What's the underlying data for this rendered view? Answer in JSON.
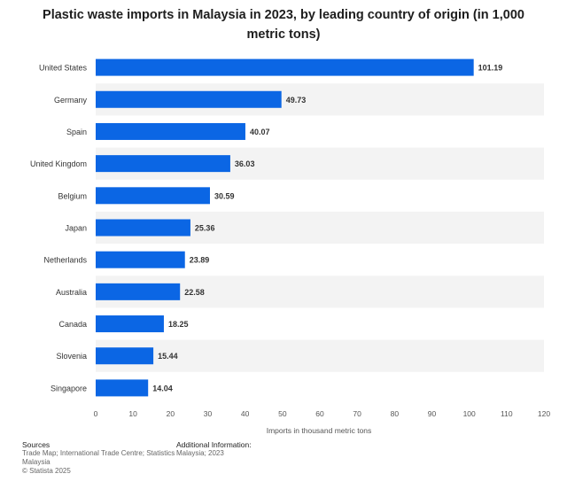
{
  "title": "Plastic waste imports in Malaysia in 2023, by leading country of origin (in 1,000 metric tons)",
  "chart_data": {
    "type": "bar",
    "orientation": "horizontal",
    "categories": [
      "United States",
      "Germany",
      "Spain",
      "United Kingdom",
      "Belgium",
      "Japan",
      "Netherlands",
      "Australia",
      "Canada",
      "Slovenia",
      "Singapore"
    ],
    "values": [
      101.19,
      49.73,
      40.07,
      36.03,
      30.59,
      25.36,
      23.89,
      22.58,
      18.25,
      15.44,
      14.04
    ],
    "value_labels": [
      "101.19",
      "49.73",
      "40.07",
      "36.03",
      "30.59",
      "25.36",
      "23.89",
      "22.58",
      "18.25",
      "15.44",
      "14.04"
    ],
    "xlabel": "Imports in thousand metric tons",
    "ylabel": "",
    "xlim": [
      0,
      120
    ],
    "xticks": [
      "0",
      "10",
      "20",
      "30",
      "40",
      "50",
      "60",
      "70",
      "80",
      "90",
      "100",
      "110",
      "120"
    ],
    "bar_color": "#0b66e4",
    "band_color": "#f3f3f3",
    "grid": false
  },
  "footer": {
    "sources_title": "Sources",
    "sources_lines": [
      "Trade Map; International Trade Centre; Statistics",
      "Malaysia"
    ],
    "copyright": "© Statista 2025",
    "info_title": "Additional Information:",
    "info_text": "Malaysia; 2023"
  }
}
